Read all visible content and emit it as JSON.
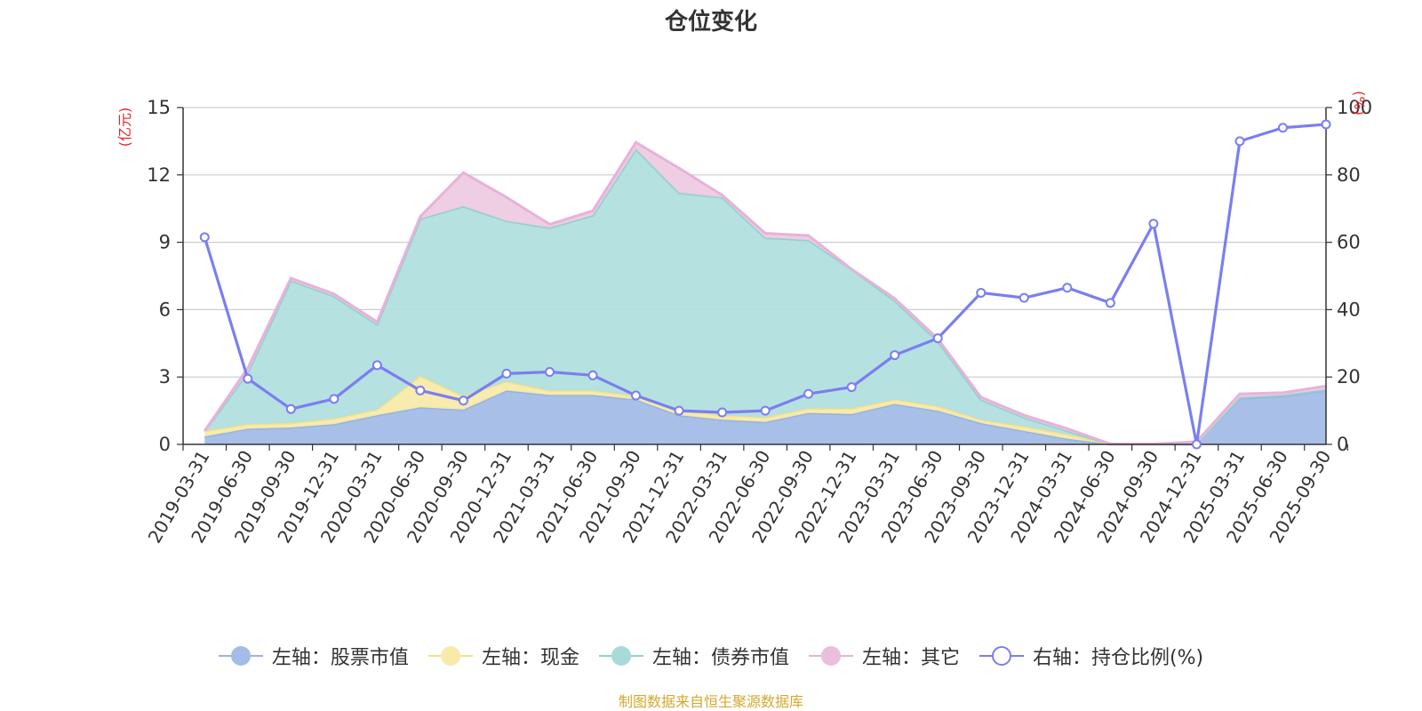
{
  "chart_data": {
    "type": "area",
    "title": "仓位变化",
    "source_note": "制图数据来自恒生聚源数据库",
    "y_left_unit": "(亿元)",
    "y_right_unit": "(%)",
    "y_left_range": [
      0,
      15
    ],
    "y_left_ticks": [
      "0",
      "3",
      "6",
      "9",
      "12",
      "15"
    ],
    "y_right_range": [
      0,
      100
    ],
    "y_right_ticks": [
      "0",
      "20",
      "40",
      "60",
      "80",
      "100"
    ],
    "categories": [
      "2019-03-31",
      "2019-06-30",
      "2019-09-30",
      "2019-12-31",
      "2020-03-31",
      "2020-06-30",
      "2020-09-30",
      "2020-12-31",
      "2021-03-31",
      "2021-06-30",
      "2021-09-30",
      "2021-12-31",
      "2022-03-31",
      "2022-06-30",
      "2022-09-30",
      "2022-12-31",
      "2023-03-31",
      "2023-06-30",
      "2023-09-30",
      "2023-12-31",
      "2024-03-31",
      "2024-06-30",
      "2024-09-30",
      "2024-12-31",
      "2025-03-31",
      "2025-06-30",
      "2025-09-30"
    ],
    "series": [
      {
        "name": "左轴：股票市值",
        "axis": "left",
        "kind": "stack",
        "color": "#a3bde6",
        "line": "#98b3e0",
        "values": [
          0.35,
          0.7,
          0.75,
          0.9,
          1.3,
          1.65,
          1.55,
          2.4,
          2.2,
          2.2,
          2.0,
          1.3,
          1.1,
          1.0,
          1.4,
          1.35,
          1.8,
          1.5,
          0.95,
          0.6,
          0.25,
          0.01,
          0.01,
          0.01,
          2.05,
          2.15,
          2.4
        ]
      },
      {
        "name": "左轴：现金",
        "axis": "left",
        "kind": "stack",
        "color": "#f8eaaa",
        "line": "#f5e08a",
        "values": [
          0.25,
          0.2,
          0.2,
          0.25,
          0.25,
          1.4,
          0.6,
          0.4,
          0.2,
          0.2,
          0.15,
          0.2,
          0.2,
          0.2,
          0.2,
          0.25,
          0.2,
          0.2,
          0.15,
          0.2,
          0.2,
          0.01,
          0.01,
          0.01,
          0.05,
          0.05,
          0.05
        ]
      },
      {
        "name": "左轴：债券市值",
        "axis": "left",
        "kind": "stack",
        "color": "#b2dfdf",
        "line": "#8fd0d0",
        "values": [
          0.0,
          2.3,
          6.35,
          5.45,
          3.8,
          7.0,
          8.45,
          7.15,
          7.25,
          7.8,
          11.0,
          9.7,
          9.7,
          8.0,
          7.5,
          6.2,
          4.4,
          2.9,
          0.9,
          0.4,
          0.15,
          0.0,
          0.0,
          0.0,
          0.0,
          0.0,
          0.0
        ]
      },
      {
        "name": "左轴：其它",
        "axis": "left",
        "kind": "stack",
        "color": "#eecbe2",
        "line": "#e7b2d8",
        "values": [
          0.0,
          0.2,
          0.1,
          0.1,
          0.1,
          0.1,
          1.5,
          1.05,
          0.15,
          0.2,
          0.3,
          1.1,
          0.1,
          0.2,
          0.2,
          0.0,
          0.1,
          0.1,
          0.1,
          0.1,
          0.1,
          0.0,
          0.0,
          0.1,
          0.15,
          0.1,
          0.15
        ]
      },
      {
        "name": "右轴：持仓比例(%)",
        "axis": "right",
        "kind": "line",
        "color": "#7b7ef0",
        "values": [
          61.5,
          19.5,
          10.5,
          13.5,
          23.5,
          16.0,
          13.0,
          21.0,
          21.5,
          20.5,
          14.5,
          10.0,
          9.5,
          10.0,
          15.0,
          17.0,
          26.5,
          31.5,
          45.0,
          43.5,
          46.5,
          42.0,
          65.5,
          0.0,
          90.0,
          94.0,
          95.0
        ]
      }
    ]
  }
}
